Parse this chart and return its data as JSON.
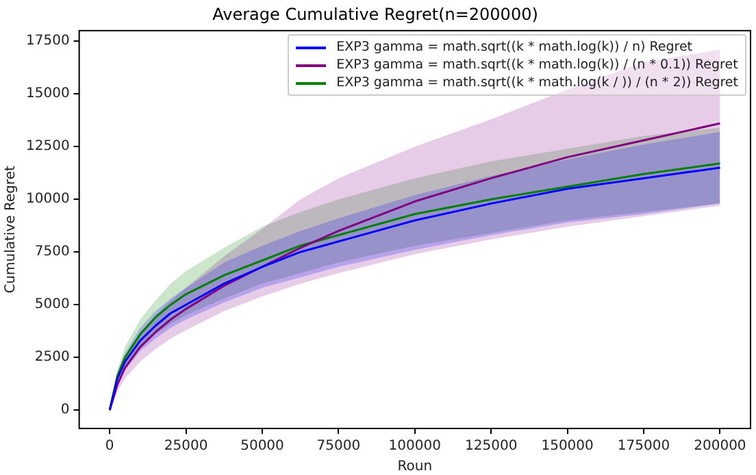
{
  "chart_data": {
    "type": "line",
    "title": "Average Cumulative Regret(n=200000)",
    "xlabel": "Roun",
    "ylabel": "Cumulative Regret",
    "x": [
      0,
      2500,
      5000,
      10000,
      15000,
      20000,
      25000,
      37500,
      50000,
      62500,
      75000,
      100000,
      125000,
      150000,
      175000,
      200000
    ],
    "series": [
      {
        "name": "EXP3 gamma = math.sqrt((k * math.log(k)) / n) Regret",
        "color": "#0000ff",
        "values": [
          0,
          1500,
          2300,
          3300,
          4000,
          4600,
          5000,
          6000,
          6800,
          7500,
          8000,
          9000,
          9800,
          10500,
          11000,
          11500
        ],
        "lower": [
          0,
          1200,
          1900,
          2800,
          3400,
          3900,
          4300,
          5100,
          5800,
          6300,
          6800,
          7600,
          8300,
          8900,
          9300,
          9800
        ],
        "upper": [
          0,
          1800,
          2700,
          3900,
          4700,
          5300,
          5800,
          7000,
          7800,
          8500,
          9100,
          10200,
          11100,
          11900,
          12600,
          13200
        ]
      },
      {
        "name": "EXP3 gamma = math.sqrt((k * math.log(k)) / (n * 0.1)) Regret",
        "color": "#800080",
        "values": [
          0,
          1200,
          2000,
          3000,
          3700,
          4300,
          4800,
          5900,
          6800,
          7700,
          8500,
          9900,
          11000,
          12000,
          12800,
          13600
        ],
        "lower": [
          0,
          900,
          1500,
          2300,
          2900,
          3400,
          3800,
          4700,
          5400,
          6000,
          6500,
          7400,
          8100,
          8700,
          9200,
          9700
        ],
        "upper": [
          0,
          1500,
          2500,
          3700,
          4500,
          5200,
          5800,
          7300,
          8600,
          10000,
          11000,
          12500,
          13800,
          15200,
          16500,
          17100
        ]
      },
      {
        "name": "EXP3 gamma = math.sqrt((k * math.log(k / )) / (n * 2)) Regret",
        "color": "#008000",
        "values": [
          0,
          1600,
          2500,
          3600,
          4400,
          5000,
          5500,
          6400,
          7100,
          7800,
          8300,
          9300,
          10000,
          10600,
          11200,
          11700
        ],
        "lower": [
          0,
          1300,
          2000,
          2900,
          3600,
          4100,
          4500,
          5300,
          6000,
          6500,
          7000,
          7800,
          8400,
          9000,
          9400,
          9800
        ],
        "upper": [
          0,
          1900,
          3000,
          4300,
          5200,
          6000,
          6600,
          7700,
          8700,
          9400,
          10000,
          11000,
          11800,
          12400,
          13000,
          13400
        ]
      }
    ],
    "xlim": [
      -10000,
      210000
    ],
    "xticks": [
      0,
      25000,
      50000,
      75000,
      100000,
      125000,
      150000,
      175000,
      200000
    ],
    "ylim": [
      -870,
      18000
    ],
    "yticks": [
      0,
      2500,
      5000,
      7500,
      10000,
      12500,
      15000,
      17500
    ],
    "grid": false,
    "legend": "top right",
    "line_style": "solid",
    "marker": "none"
  }
}
